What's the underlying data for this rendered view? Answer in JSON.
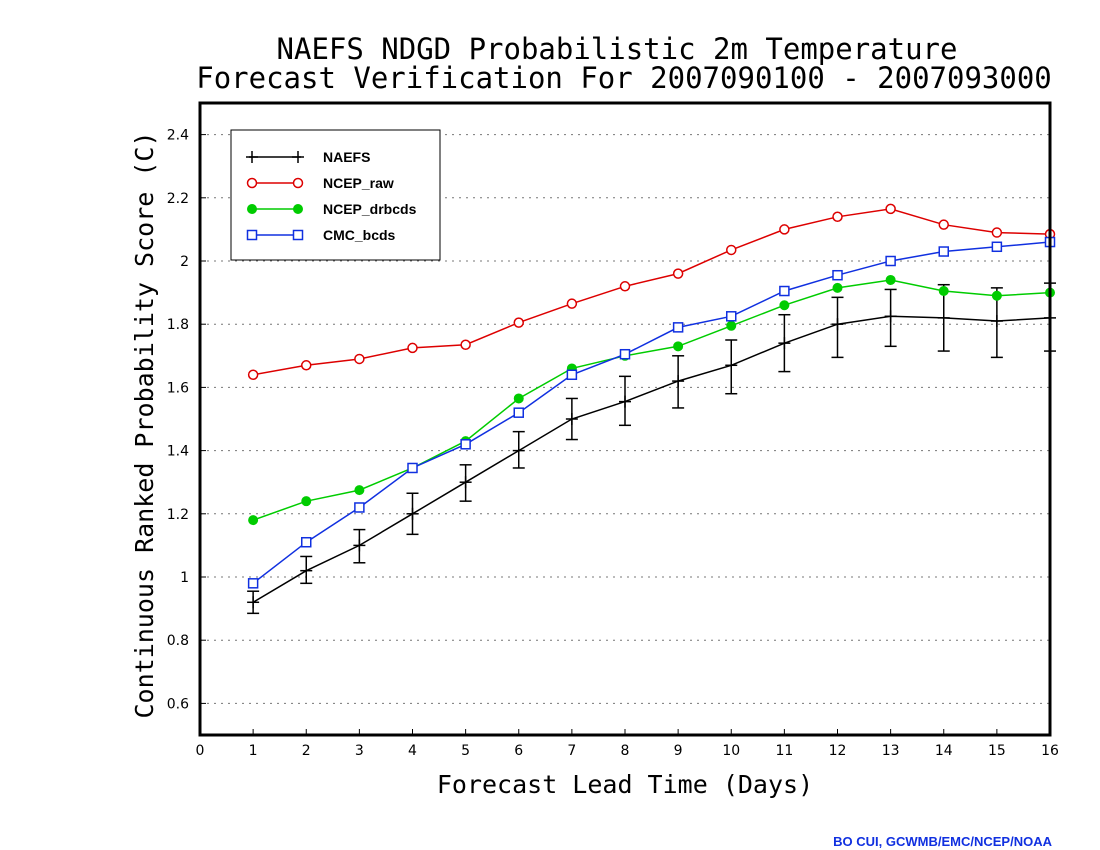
{
  "chart_data": {
    "type": "line",
    "title_lines": [
      "NAEFS NDGD Probabilistic 2m Temperature",
      "Forecast Verification For 2007090100 - 2007093000"
    ],
    "xlabel": "Forecast Lead Time (Days)",
    "ylabel": "Continuous Ranked Probability Score (C)",
    "xlim": [
      0,
      16
    ],
    "ylim": [
      0.5,
      2.5
    ],
    "x_ticks": [
      0,
      1,
      2,
      3,
      4,
      5,
      6,
      7,
      8,
      9,
      10,
      11,
      12,
      13,
      14,
      15,
      16
    ],
    "y_ticks": [
      0.6,
      0.8,
      1,
      1.2,
      1.4,
      1.6,
      1.8,
      2,
      2.2,
      2.4
    ],
    "y_tick_labels": [
      "0.6",
      "0.8",
      "1",
      "1.2",
      "1.4",
      "1.6",
      "1.8",
      "2",
      "2.2",
      "2.4"
    ],
    "grid": "horizontal dotted",
    "legend_position": "top-left",
    "x": [
      1,
      2,
      3,
      4,
      5,
      6,
      7,
      8,
      9,
      10,
      11,
      12,
      13,
      14,
      15,
      16
    ],
    "series": [
      {
        "name": "NAEFS",
        "color": "#000000",
        "marker": "plus",
        "values": [
          0.92,
          1.02,
          1.1,
          1.2,
          1.3,
          1.4,
          1.5,
          1.555,
          1.62,
          1.67,
          1.74,
          1.8,
          1.825,
          1.82,
          1.81,
          1.82
        ],
        "error_low": [
          0.885,
          0.98,
          1.045,
          1.135,
          1.24,
          1.345,
          1.435,
          1.48,
          1.535,
          1.58,
          1.65,
          1.695,
          1.73,
          1.715,
          1.695,
          1.715
        ],
        "error_high": [
          0.955,
          1.065,
          1.15,
          1.265,
          1.355,
          1.46,
          1.565,
          1.635,
          1.7,
          1.75,
          1.83,
          1.885,
          1.91,
          1.925,
          1.915,
          1.93
        ]
      },
      {
        "name": "NCEP_raw",
        "color": "#dd0000",
        "marker": "circle-open",
        "values": [
          1.64,
          1.67,
          1.69,
          1.725,
          1.735,
          1.805,
          1.865,
          1.92,
          1.96,
          2.035,
          2.1,
          2.14,
          2.165,
          2.115,
          2.09,
          2.085
        ]
      },
      {
        "name": "NCEP_drbcds",
        "color": "#00cc00",
        "marker": "circle-filled",
        "values": [
          1.18,
          1.24,
          1.275,
          1.345,
          1.43,
          1.565,
          1.66,
          1.7,
          1.73,
          1.795,
          1.86,
          1.915,
          1.94,
          1.905,
          1.89,
          1.9
        ]
      },
      {
        "name": "CMC_bcds",
        "color": "#1030e0",
        "marker": "square-open",
        "values": [
          0.98,
          1.11,
          1.22,
          1.345,
          1.42,
          1.52,
          1.64,
          1.705,
          1.79,
          1.825,
          1.905,
          1.955,
          2.0,
          2.03,
          2.045,
          2.06
        ]
      }
    ]
  },
  "credit": "BO CUI, GCWMB/EMC/NCEP/NOAA"
}
